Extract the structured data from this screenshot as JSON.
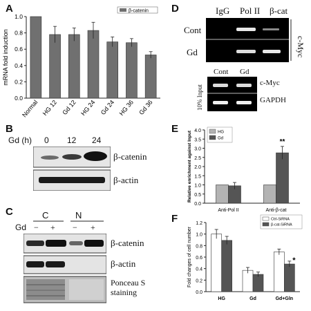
{
  "panels": {
    "A": {
      "letter": "A",
      "chart_data": {
        "type": "bar",
        "categories": [
          "Normal",
          "HG 12",
          "Gd 12",
          "HG 24",
          "Gd 24",
          "HG 36",
          "Gd 36"
        ],
        "series": [
          {
            "name": "β-catenin",
            "values": [
              1.0,
              0.78,
              0.78,
              0.83,
              0.69,
              0.68,
              0.53
            ],
            "errors": [
              0.0,
              0.1,
              0.08,
              0.1,
              0.06,
              0.05,
              0.04
            ]
          }
        ],
        "ylabel": "mRNA fold induction",
        "ylim": [
          0.0,
          1.0
        ],
        "yticks": [
          "0.0",
          "0.2",
          "0.4",
          "0.6",
          "0.8",
          "1.0"
        ]
      }
    },
    "B": {
      "letter": "B",
      "time_header": "Gd (h)",
      "times": [
        "0",
        "12",
        "24"
      ],
      "rows": [
        "β-catenin",
        "β-actin"
      ]
    },
    "C": {
      "letter": "C",
      "groups": [
        "C",
        "N"
      ],
      "gd_label": "Gd",
      "signs": [
        "−",
        "+",
        "−",
        "+"
      ],
      "rows": [
        "β-catenin",
        "β-actin",
        "Ponceau S",
        "staining"
      ]
    },
    "D": {
      "letter": "D",
      "cols": [
        "IgG",
        "Pol II",
        "β-cat"
      ],
      "rows": [
        "Cont",
        "Gd"
      ],
      "side_label": "c-Myc",
      "input_cols": [
        "Cont",
        "Gd"
      ],
      "input_side": "10% Input",
      "input_rows": [
        "c-Myc",
        "GAPDH"
      ]
    },
    "E": {
      "letter": "E",
      "chart_data": {
        "type": "bar",
        "categories": [
          "Anti-Pol II",
          "Anti-β-cat"
        ],
        "series": [
          {
            "name": "HG",
            "values": [
              1.0,
              1.0
            ],
            "errors": [
              0,
              0
            ],
            "color": "#b3b3b3"
          },
          {
            "name": "Gd",
            "values": [
              0.95,
              2.75
            ],
            "errors": [
              0.18,
              0.35
            ],
            "color": "#555555"
          }
        ],
        "ylabel": "Relative enrichment against Input",
        "ylim": [
          0.0,
          4.0
        ],
        "yticks": [
          "0.0",
          "0.5",
          "1.0",
          "1.5",
          "2.0",
          "2.5",
          "3.0",
          "3.5",
          "4.0"
        ],
        "annotations": [
          "**"
        ]
      }
    },
    "F": {
      "letter": "F",
      "chart_data": {
        "type": "bar",
        "categories": [
          "HG",
          "Gd",
          "Gd+Gln"
        ],
        "series": [
          {
            "name": "Ctrl-SiRNA",
            "values": [
              1.0,
              0.37,
              0.69
            ],
            "errors": [
              0.08,
              0.05,
              0.05
            ],
            "color": "#ffffff"
          },
          {
            "name": "β-cat-SiRNA",
            "values": [
              0.89,
              0.3,
              0.48
            ],
            "errors": [
              0.07,
              0.04,
              0.05
            ],
            "color": "#555555"
          }
        ],
        "ylabel": "Fold changes of cell number",
        "ylim": [
          0.0,
          1.2
        ],
        "yticks": [
          "0.0",
          "0.2",
          "0.4",
          "0.6",
          "0.8",
          "1.0",
          "1.2"
        ],
        "annotations": [
          "*"
        ]
      }
    }
  }
}
